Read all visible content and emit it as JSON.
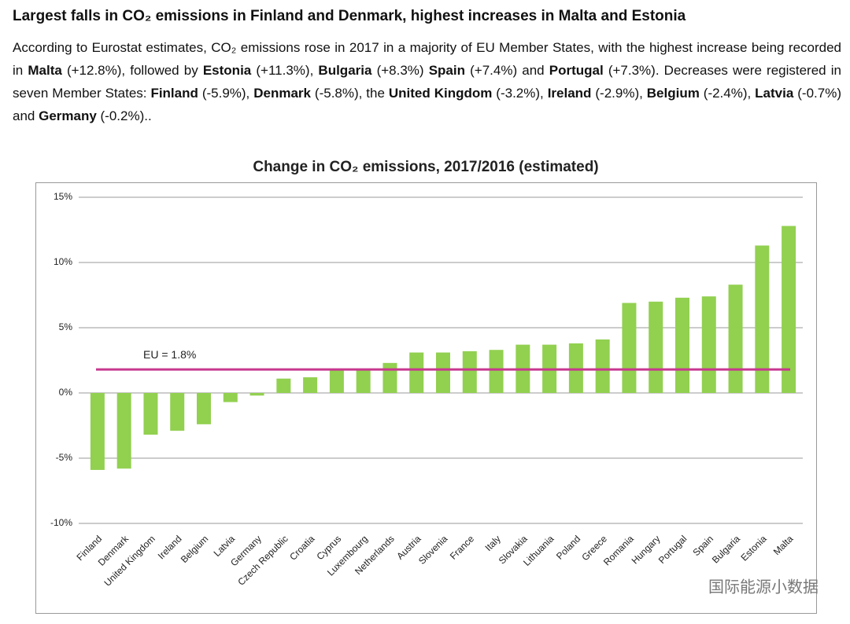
{
  "header": {
    "title": "Largest falls in CO₂ emissions in Finland and Denmark, highest increases in Malta and Estonia",
    "paragraph": [
      {
        "text": "According to Eurostat estimates, CO₂ emissions rose in 2017 in a majority of EU Member States, with the highest increase being recorded in ",
        "bold": false
      },
      {
        "text": "Malta",
        "bold": true
      },
      {
        "text": " (+12.8%), followed by ",
        "bold": false
      },
      {
        "text": "Estonia",
        "bold": true
      },
      {
        "text": " (+11.3%), ",
        "bold": false
      },
      {
        "text": "Bulgaria",
        "bold": true
      },
      {
        "text": " (+8.3%) ",
        "bold": false
      },
      {
        "text": "Spain",
        "bold": true
      },
      {
        "text": " (+7.4%) and ",
        "bold": false
      },
      {
        "text": "Portugal",
        "bold": true
      },
      {
        "text": " (+7.3%). Decreases were registered in seven Member States: ",
        "bold": false
      },
      {
        "text": "Finland",
        "bold": true
      },
      {
        "text": " (-5.9%), ",
        "bold": false
      },
      {
        "text": "Denmark",
        "bold": true
      },
      {
        "text": " (-5.8%), the ",
        "bold": false
      },
      {
        "text": "United Kingdom",
        "bold": true
      },
      {
        "text": " (-3.2%), ",
        "bold": false
      },
      {
        "text": "Ireland",
        "bold": true
      },
      {
        "text": " (-2.9%), ",
        "bold": false
      },
      {
        "text": "Belgium",
        "bold": true
      },
      {
        "text": " (-2.4%), ",
        "bold": false
      },
      {
        "text": "Latvia",
        "bold": true
      },
      {
        "text": " (-0.7%) and ",
        "bold": false
      },
      {
        "text": "Germany",
        "bold": true
      },
      {
        "text": " (-0.2%)..",
        "bold": false
      }
    ]
  },
  "chart_data": {
    "type": "bar",
    "title": "Change in CO₂ emissions, 2017/2016 (estimated)",
    "categories": [
      "Finland",
      "Denmark",
      "United Kingdom",
      "Ireland",
      "Belgium",
      "Latvia",
      "Germany",
      "Czech Republic",
      "Croatia",
      "Cyprus",
      "Luxembourg",
      "Netherlands",
      "Austria",
      "Slovenia",
      "France",
      "Italy",
      "Slovakia",
      "Lithuania",
      "Poland",
      "Greece",
      "Romania",
      "Hungary",
      "Portugal",
      "Spain",
      "Bulgaria",
      "Estonia",
      "Malta"
    ],
    "values": [
      -5.9,
      -5.8,
      -3.2,
      -2.9,
      -2.4,
      -0.7,
      -0.2,
      1.1,
      1.2,
      1.8,
      1.8,
      2.3,
      3.1,
      3.1,
      3.2,
      3.3,
      3.7,
      3.7,
      3.8,
      4.1,
      6.9,
      7.0,
      7.3,
      7.4,
      8.3,
      11.3,
      12.8
    ],
    "color": "#92d050",
    "ylim": [
      -10,
      15
    ],
    "yticks": [
      {
        "value": -10,
        "label": "-10%"
      },
      {
        "value": -5,
        "label": "-5%"
      },
      {
        "value": 0,
        "label": "0%"
      },
      {
        "value": 5,
        "label": "5%"
      },
      {
        "value": 10,
        "label": "10%"
      },
      {
        "value": 15,
        "label": "15%"
      }
    ],
    "grid": true,
    "reference_line": {
      "value": 1.8,
      "label": "EU = 1.8%",
      "color": "#c8378f"
    }
  },
  "watermark": "国际能源小数据"
}
